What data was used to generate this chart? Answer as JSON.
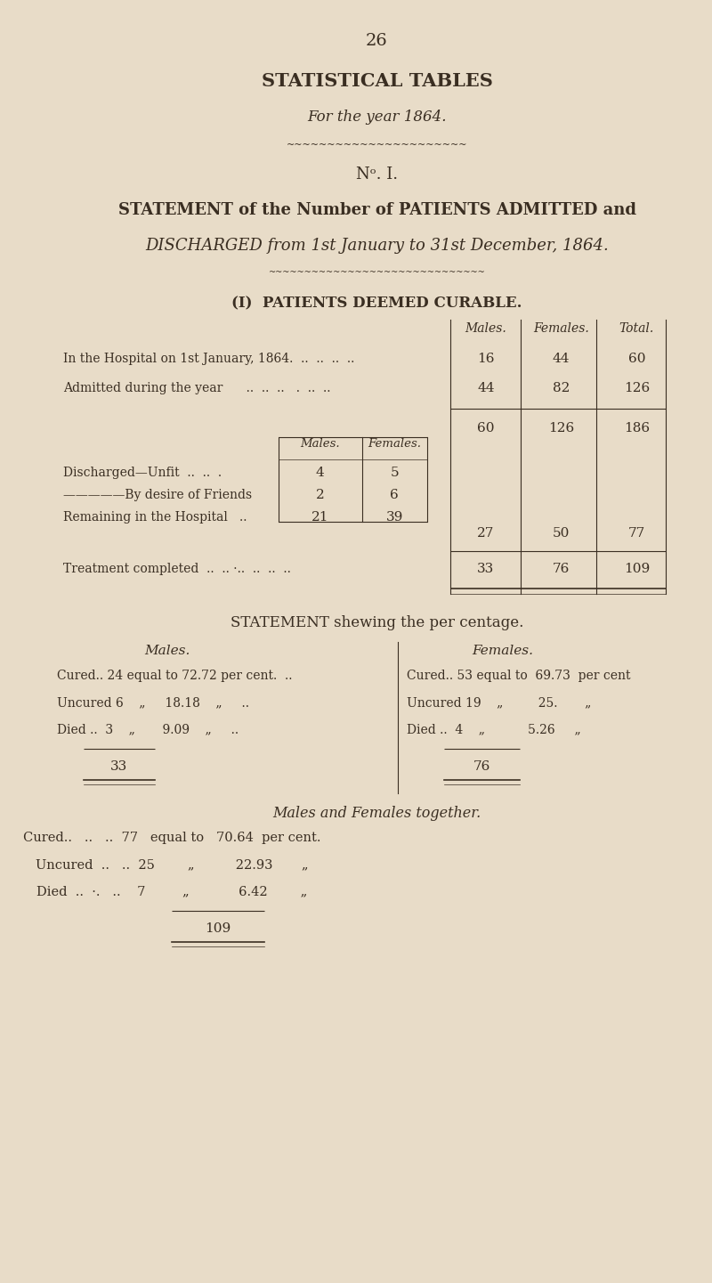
{
  "bg_color": "#e8dcc8",
  "text_color": "#3a2e22",
  "page_number": "26",
  "title_main": "STATISTICAL TABLES",
  "title_sub": "For the year 1864.",
  "no_label": "Nᵒ. I.",
  "statement_title_line1": "STATEMENT of the Number of PATIENTS ADMITTED and",
  "statement_title_line2": "DISCHARGED from 1st January to 31st December, 1864.",
  "section1_heading": "(I)  PATIENTS DEEMED CURABLE.",
  "col_headers": [
    "Males.",
    "Females.",
    "Total."
  ],
  "row1_label": "In the Hospital on 1st January, 1864.  ..  ..  ..  ..",
  "row1_vals": [
    "16",
    "44",
    "60"
  ],
  "row2_label": "Admitted during the year      ..  ..  ..   .  ..  ..",
  "row2_vals": [
    "44",
    "82",
    "126"
  ],
  "subtotal_vals": [
    "60",
    "126",
    "186"
  ],
  "inner_col_headers": [
    "Males.",
    "Females."
  ],
  "discharged_unfit_label": "Discharged—Unfit  ..  ..  .",
  "discharged_unfit_vals": [
    "4",
    "5"
  ],
  "by_desire_label": "—————By desire of Friends",
  "by_desire_vals": [
    "2",
    "6"
  ],
  "remaining_label": "Remaining in the Hospital   ..",
  "remaining_vals": [
    "21",
    "39"
  ],
  "subtotal2_vals": [
    "27",
    "50",
    "77"
  ],
  "treatment_label": "Treatment completed  ..  .. ·..  ..  ..  ..",
  "treatment_vals": [
    "33",
    "76",
    "109"
  ],
  "pct_heading": "STATEMENT shewing the per centage.",
  "males_heading": "Males.",
  "females_heading": "Females.",
  "males_cured": "Cured.. 24 equal to 72.72 per cent.  ..",
  "males_uncured": "Uncured 6    „     18.18    „     ..",
  "males_died": "Died ..  3    „       9.09    „     ..",
  "males_total": "33",
  "females_cured": "Cured.. 53 equal to  69.73  per cent",
  "females_uncured": "Uncured 19    „         25.       „",
  "females_died": "Died ..  4    „           5.26     „",
  "females_total": "76",
  "combined_heading": "Males and Females together.",
  "combined_cured": "Cured..   ..   ..  77   equal to   70.64  per cent.",
  "combined_uncured": "Uncured  ..   ..  25        „          22.93       „",
  "combined_died": "Died  ..  ·.   ..    7         „            6.42        „",
  "combined_total": "109"
}
